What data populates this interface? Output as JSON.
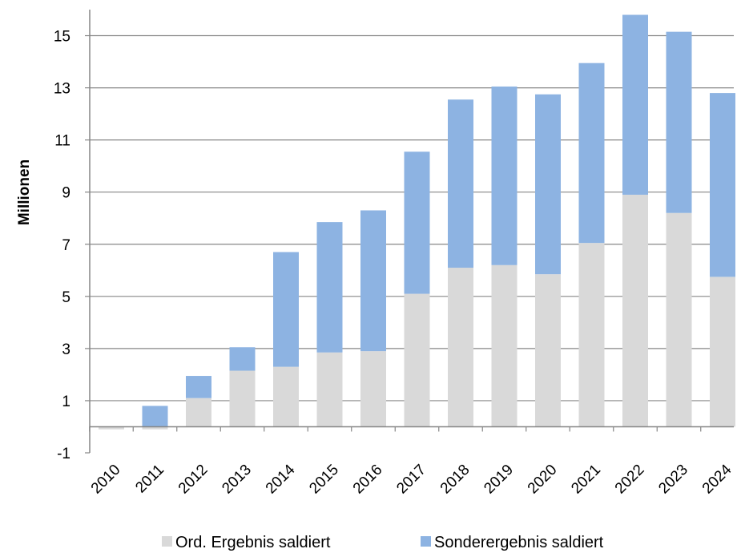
{
  "chart_data": {
    "type": "bar",
    "stacked": true,
    "ylabel": "Millionen",
    "ylim": [
      -1,
      16
    ],
    "yticks": [
      -1,
      1,
      3,
      5,
      7,
      9,
      11,
      13,
      15
    ],
    "grid": true,
    "legend_position": "bottom",
    "categories": [
      "2010",
      "2011",
      "2012",
      "2013",
      "2014",
      "2015",
      "2016",
      "2017",
      "2018",
      "2019",
      "2020",
      "2021",
      "2022",
      "2023",
      "2024"
    ],
    "series": [
      {
        "name": "Ord. Ergebnis saldiert",
        "color": "#d9d9d9",
        "values": [
          -0.1,
          -0.1,
          1.1,
          2.15,
          2.3,
          2.85,
          2.9,
          5.1,
          6.1,
          6.2,
          5.85,
          7.05,
          8.9,
          8.2,
          5.75
        ]
      },
      {
        "name": "Sonderergebnis saldiert",
        "color": "#8db3e2",
        "values": [
          0,
          0.8,
          0.85,
          0.9,
          4.4,
          5.0,
          5.4,
          5.45,
          6.45,
          6.85,
          6.9,
          6.9,
          6.9,
          6.95,
          7.05
        ]
      }
    ]
  }
}
